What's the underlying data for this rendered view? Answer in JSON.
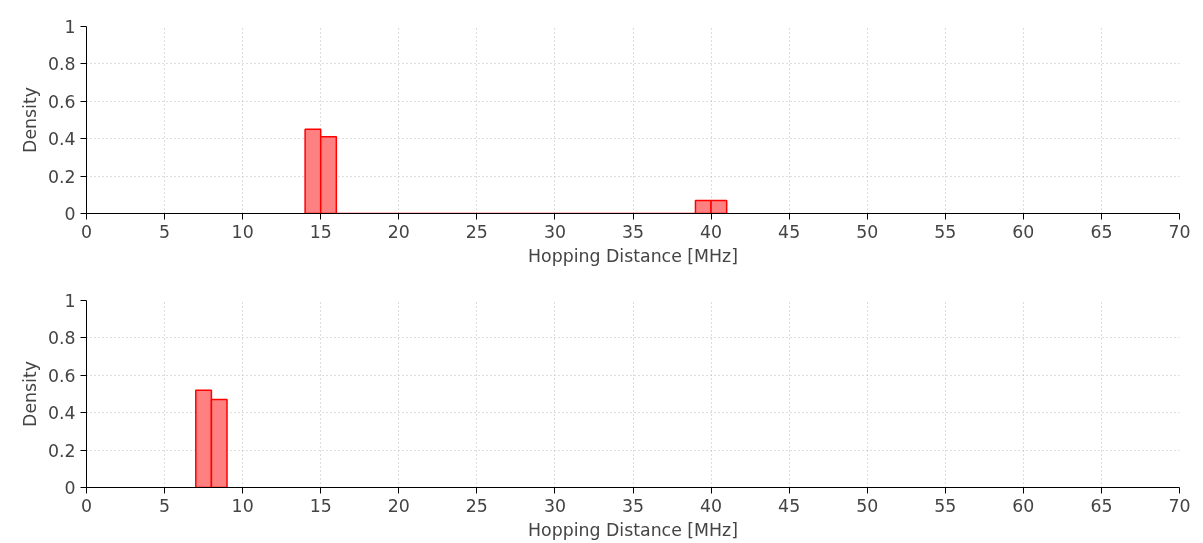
{
  "chart_data": [
    {
      "type": "histogram",
      "xlabel": "Hopping Distance [MHz]",
      "ylabel": "Density",
      "bins": [
        14,
        15,
        16,
        17,
        18,
        19,
        20,
        21,
        22,
        23,
        24,
        25,
        26,
        27,
        28,
        29,
        30,
        31,
        32,
        33,
        34,
        35,
        36,
        37,
        38,
        39,
        40,
        41
      ],
      "values": [
        0.45,
        0.41,
        0,
        0,
        0,
        0,
        0,
        0,
        0,
        0,
        0,
        0,
        0,
        0,
        0,
        0,
        0,
        0,
        0,
        0,
        0,
        0,
        0,
        0,
        0,
        0.07,
        0.07
      ],
      "color": "#ff8080",
      "xlim": [
        0,
        70
      ],
      "xticks": [
        0,
        5,
        10,
        15,
        20,
        25,
        30,
        35,
        40,
        45,
        50,
        55,
        60,
        65,
        70
      ],
      "ylim": [
        0,
        1
      ],
      "yticks": [
        0,
        0.2,
        0.4,
        0.6,
        0.8,
        1
      ],
      "grid": true
    },
    {
      "type": "histogram",
      "xlabel": "Hopping Distance [MHz]",
      "ylabel": "Density",
      "bins": [
        7,
        8,
        9
      ],
      "values": [
        0.52,
        0.47
      ],
      "color": "#ff8080",
      "xlim": [
        0,
        70
      ],
      "xticks": [
        0,
        5,
        10,
        15,
        20,
        25,
        30,
        35,
        40,
        45,
        50,
        55,
        60,
        65,
        70
      ],
      "ylim": [
        0,
        1
      ],
      "yticks": [
        0,
        0.2,
        0.4,
        0.6,
        0.8,
        1
      ],
      "grid": true
    }
  ]
}
